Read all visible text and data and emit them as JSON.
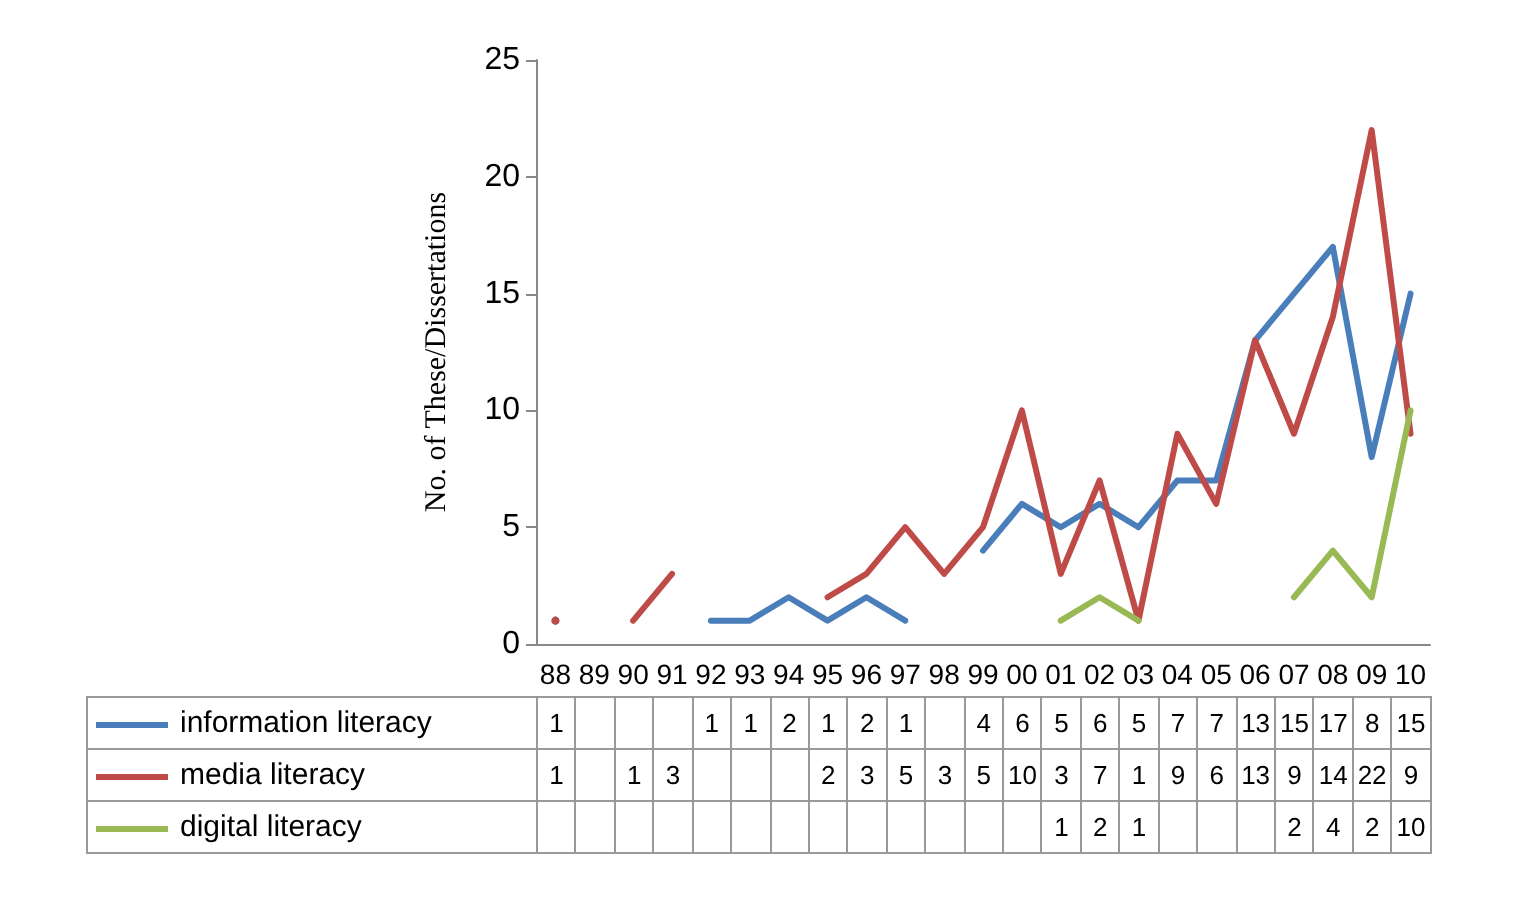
{
  "chart_data": {
    "type": "line",
    "ylabel": "No. of These/Dissertations",
    "categories": [
      "88",
      "89",
      "90",
      "91",
      "92",
      "93",
      "94",
      "95",
      "96",
      "97",
      "98",
      "99",
      "00",
      "01",
      "02",
      "03",
      "04",
      "05",
      "06",
      "07",
      "08",
      "09",
      "10"
    ],
    "series": [
      {
        "name": "information literacy",
        "color": "#4a7ebb",
        "values": [
          1,
          null,
          null,
          null,
          1,
          1,
          2,
          1,
          2,
          1,
          null,
          4,
          6,
          5,
          6,
          5,
          7,
          7,
          13,
          15,
          17,
          8,
          15
        ]
      },
      {
        "name": "media literacy",
        "color": "#be4b48",
        "values": [
          1,
          null,
          1,
          3,
          null,
          null,
          null,
          2,
          3,
          5,
          3,
          5,
          10,
          3,
          7,
          1,
          9,
          6,
          13,
          9,
          14,
          22,
          9
        ]
      },
      {
        "name": "digital literacy",
        "color": "#98b954",
        "values": [
          null,
          null,
          null,
          null,
          null,
          null,
          null,
          null,
          null,
          null,
          null,
          null,
          null,
          1,
          2,
          1,
          null,
          null,
          null,
          2,
          4,
          2,
          10
        ]
      }
    ],
    "ylim": [
      0,
      25
    ],
    "yticks": [
      0,
      5,
      10,
      15,
      20,
      25
    ],
    "grid": false,
    "legend": "bottom",
    "marker": "none",
    "line_style": "solid",
    "data_labels": true
  }
}
